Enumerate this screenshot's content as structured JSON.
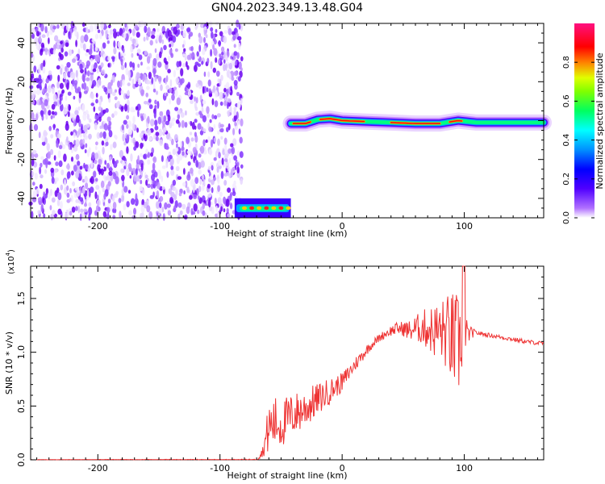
{
  "title": "GN04.2023.349.13.48.G04",
  "chart_data": [
    {
      "type": "heatmap",
      "xlabel": "Height of straight line (km)",
      "ylabel": "Frequency (Hz)",
      "xlim": [
        -255,
        165
      ],
      "ylim": [
        -50,
        50
      ],
      "x_ticks": [
        -200,
        -100,
        0,
        100
      ],
      "y_ticks": [
        -40,
        -20,
        0,
        20,
        40
      ],
      "colorbar": {
        "label": "Normalized spectral amplitude",
        "range": [
          0,
          1
        ],
        "ticks": [
          "0.0",
          "0.2",
          "0.4",
          "0.6",
          "0.8"
        ],
        "colormap": [
          "#ffffff",
          "#8000ff",
          "#0000ff",
          "#00c8ff",
          "#00ff40",
          "#c8ff00",
          "#ff8000",
          "#ff0000",
          "#ff00c0"
        ]
      },
      "regions": [
        {
          "name": "broadband noise",
          "x_range": [
            -255,
            -82
          ],
          "freq_range": [
            -50,
            50
          ],
          "amplitude": 0.1
        },
        {
          "name": "low-frequency onset",
          "x_range": [
            -88,
            -42
          ],
          "freq_range": [
            -50,
            -40
          ],
          "amplitude": 0.8
        },
        {
          "name": "carrier line",
          "x_range": [
            -42,
            165
          ],
          "freq_center": 0,
          "amplitude": 0.9
        }
      ],
      "carrier_trace": [
        [
          -42,
          -1.5
        ],
        [
          -30,
          -1.5
        ],
        [
          -20,
          0.5
        ],
        [
          -10,
          1
        ],
        [
          0,
          0
        ],
        [
          20,
          -0.5
        ],
        [
          40,
          -1
        ],
        [
          60,
          -1.5
        ],
        [
          80,
          -1.5
        ],
        [
          95,
          0
        ],
        [
          110,
          -1
        ],
        [
          130,
          -1
        ],
        [
          165,
          -1
        ]
      ]
    },
    {
      "type": "line",
      "xlabel": "Height of straight line (km)",
      "ylabel": "SNR (10 * v/v)",
      "y_multiplier": "(x10",
      "y_multiplier_exp": "4",
      "y_multiplier_close": ")",
      "xlim": [
        -255,
        165
      ],
      "ylim": [
        0,
        1.8
      ],
      "x_ticks": [
        -200,
        -100,
        0,
        100
      ],
      "y_ticks": [
        0.0,
        0.5,
        1.0,
        1.5
      ],
      "y_tick_labels": [
        "0.0",
        "0.5",
        "1.0",
        "1.5"
      ],
      "series": [
        {
          "color": "#ee3333",
          "x": [
            -255,
            -200,
            -150,
            -100,
            -70,
            -65,
            -60,
            -55,
            -50,
            -45,
            -40,
            -35,
            -30,
            -25,
            -20,
            -15,
            -10,
            -5,
            0,
            5,
            10,
            15,
            20,
            25,
            30,
            35,
            40,
            45,
            50,
            55,
            60,
            65,
            70,
            75,
            80,
            85,
            90,
            95,
            100,
            105,
            110,
            120,
            130,
            140,
            150,
            165
          ],
          "y": [
            0.0,
            0.0,
            0.0,
            0.0,
            0.0,
            0.08,
            0.3,
            0.35,
            0.32,
            0.38,
            0.42,
            0.45,
            0.48,
            0.52,
            0.56,
            0.6,
            0.64,
            0.68,
            0.72,
            0.8,
            0.88,
            0.95,
            1.02,
            1.08,
            1.13,
            1.17,
            1.2,
            1.22,
            1.22,
            1.2,
            1.22,
            1.23,
            1.22,
            1.2,
            1.2,
            1.18,
            1.12,
            1.05,
            1.15,
            1.18,
            1.18,
            1.16,
            1.14,
            1.12,
            1.1,
            1.08
          ],
          "noise": [
            0,
            0.005,
            0.005,
            0.005,
            0.008,
            0.05,
            0.25,
            0.25,
            0.22,
            0.22,
            0.2,
            0.2,
            0.18,
            0.17,
            0.15,
            0.14,
            0.12,
            0.1,
            0.09,
            0.08,
            0.07,
            0.06,
            0.05,
            0.04,
            0.04,
            0.04,
            0.05,
            0.06,
            0.07,
            0.1,
            0.12,
            0.16,
            0.2,
            0.25,
            0.28,
            0.35,
            0.45,
            0.5,
            0.2,
            0.06,
            0.02,
            0.02,
            0.02,
            0.02,
            0.02,
            0.02
          ]
        }
      ]
    }
  ]
}
